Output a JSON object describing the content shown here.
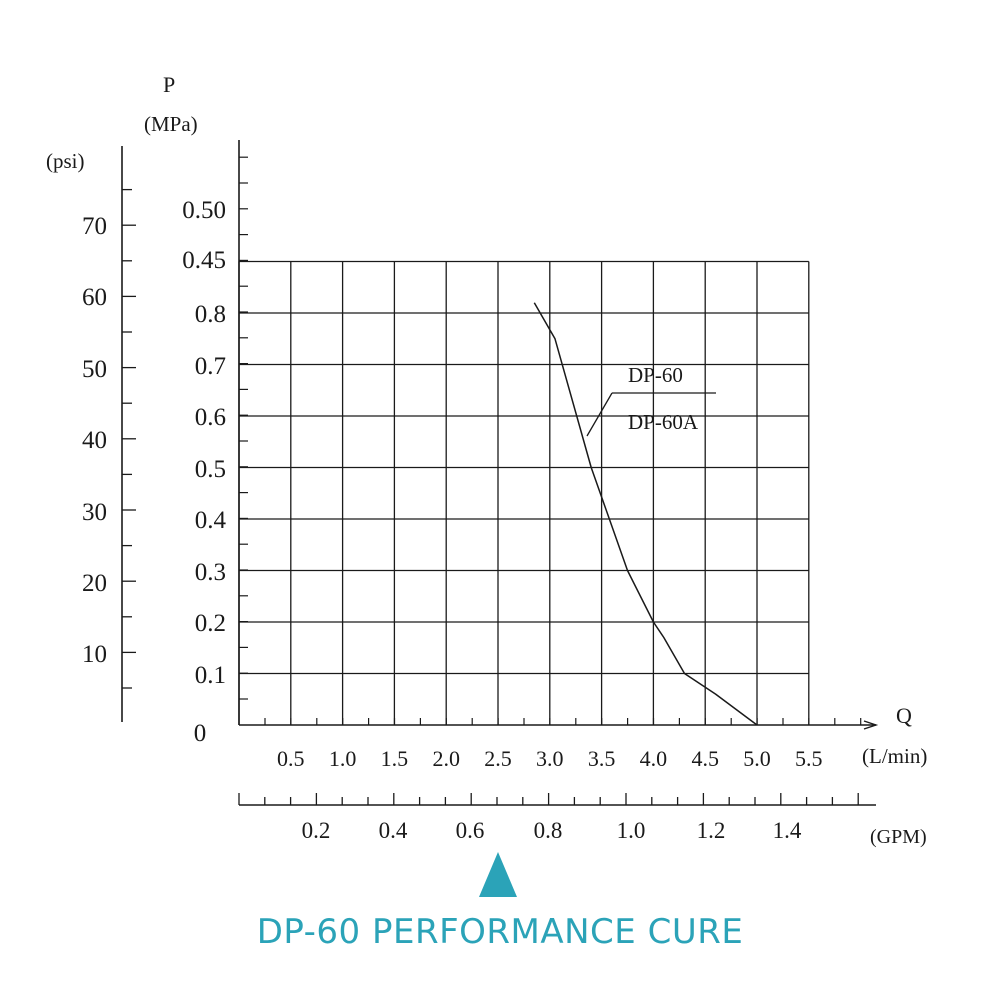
{
  "accent_color": "#2ba3b8",
  "caption": "DP-60 PERFORMANCE CURE",
  "chart_data": {
    "type": "line",
    "title": "",
    "grid": true,
    "y_axis_pressure": {
      "symbol": "P",
      "unit": "(MPa)",
      "ticks": [
        "0.1",
        "0.2",
        "0.3",
        "0.4",
        "0.5",
        "0.6",
        "0.7",
        "0.8",
        "0.45",
        "0.50"
      ]
    },
    "y_axis_psi": {
      "unit": "(psi)",
      "ticks": [
        "10",
        "20",
        "30",
        "40",
        "50",
        "60",
        "70"
      ]
    },
    "origin_label": "0",
    "x_axis_flow": {
      "symbol": "Q",
      "unit": "(L/min)",
      "ticks": [
        "0.5",
        "1.0",
        "1.5",
        "2.0",
        "2.5",
        "3.0",
        "3.5",
        "4.0",
        "4.5",
        "5.0",
        "5.5"
      ],
      "range": [
        0,
        5.5
      ]
    },
    "x_axis_gpm": {
      "unit": "(GPM)",
      "ticks": [
        "0.2",
        "0.4",
        "0.6",
        "0.8",
        "1.0",
        "1.2",
        "1.4"
      ]
    },
    "series": [
      {
        "name": "DP-60 / DP-60A",
        "x": [
          2.85,
          3.05,
          3.4,
          3.75,
          4.0,
          4.1,
          4.3,
          4.6,
          5.0
        ],
        "y": [
          0.82,
          0.75,
          0.5,
          0.3,
          0.2,
          0.17,
          0.1,
          0.06,
          0.0
        ]
      }
    ],
    "legend": [
      "DP-60",
      "DP-60A"
    ]
  }
}
